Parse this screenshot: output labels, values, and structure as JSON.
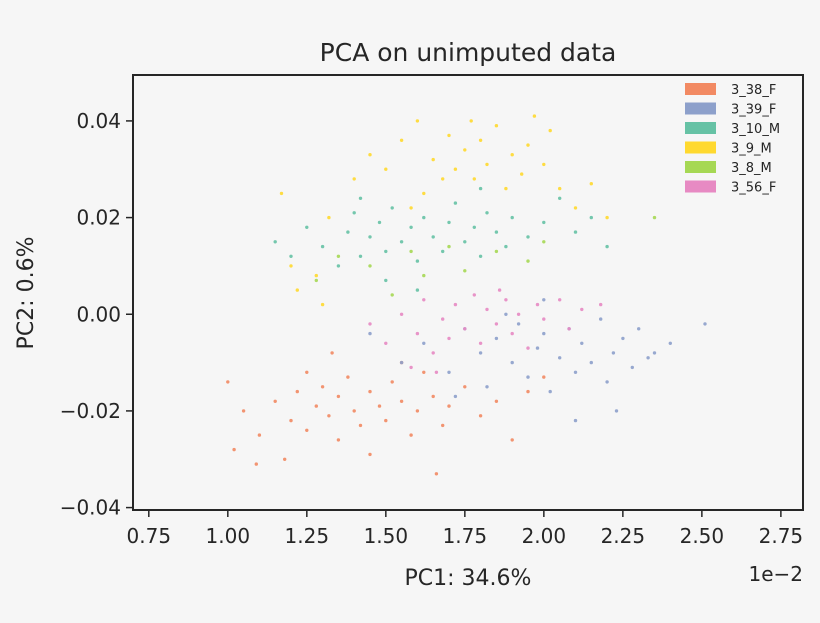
{
  "chart_data": {
    "type": "scatter",
    "title": "PCA on unimputed data",
    "xlabel": "PC1: 34.6%",
    "ylabel": "PC2: 0.6%",
    "x_offset_text": "1e−2",
    "xlim": [
      0.7,
      2.82
    ],
    "ylim": [
      -0.0405,
      0.0495
    ],
    "x_ticks": [
      0.75,
      1.0,
      1.25,
      1.5,
      1.75,
      2.0,
      2.25,
      2.5,
      2.75
    ],
    "x_tick_labels": [
      "0.75",
      "1.00",
      "1.25",
      "1.50",
      "1.75",
      "2.00",
      "2.25",
      "2.50",
      "2.75"
    ],
    "y_ticks": [
      0.04,
      0.02,
      0.0,
      -0.02,
      -0.04
    ],
    "y_tick_labels": [
      "0.04",
      "0.02",
      "0.00",
      "−0.02",
      "−0.04"
    ],
    "grid": false,
    "legend_position": "top-right",
    "series": [
      {
        "name": "3_38_F",
        "color": "#f28a63",
        "points": [
          [
            1.0,
            -0.014
          ],
          [
            1.05,
            -0.02
          ],
          [
            1.1,
            -0.025
          ],
          [
            1.15,
            -0.018
          ],
          [
            1.2,
            -0.022
          ],
          [
            1.22,
            -0.016
          ],
          [
            1.25,
            -0.012
          ],
          [
            1.25,
            -0.024
          ],
          [
            1.28,
            -0.019
          ],
          [
            1.3,
            -0.015
          ],
          [
            1.32,
            -0.021
          ],
          [
            1.35,
            -0.017
          ],
          [
            1.35,
            -0.026
          ],
          [
            1.38,
            -0.013
          ],
          [
            1.4,
            -0.02
          ],
          [
            1.42,
            -0.023
          ],
          [
            1.45,
            -0.016
          ],
          [
            1.48,
            -0.019
          ],
          [
            1.5,
            -0.022
          ],
          [
            1.52,
            -0.014
          ],
          [
            1.55,
            -0.018
          ],
          [
            1.58,
            -0.025
          ],
          [
            1.6,
            -0.02
          ],
          [
            1.62,
            -0.012
          ],
          [
            1.65,
            -0.017
          ],
          [
            1.68,
            -0.023
          ],
          [
            1.7,
            -0.019
          ],
          [
            1.75,
            -0.015
          ],
          [
            1.8,
            -0.021
          ],
          [
            1.85,
            -0.018
          ],
          [
            1.9,
            -0.026
          ],
          [
            1.95,
            -0.016
          ],
          [
            2.0,
            -0.013
          ],
          [
            1.18,
            -0.03
          ],
          [
            1.45,
            -0.029
          ],
          [
            1.66,
            -0.033
          ],
          [
            1.09,
            -0.031
          ],
          [
            1.02,
            -0.028
          ],
          [
            1.33,
            -0.008
          ],
          [
            1.55,
            -0.01
          ]
        ]
      },
      {
        "name": "3_39_F",
        "color": "#8da0cb",
        "points": [
          [
            1.45,
            -0.004
          ],
          [
            1.55,
            -0.01
          ],
          [
            1.62,
            -0.006
          ],
          [
            1.7,
            -0.012
          ],
          [
            1.75,
            -0.003
          ],
          [
            1.8,
            -0.008
          ],
          [
            1.82,
            -0.015
          ],
          [
            1.85,
            -0.005
          ],
          [
            1.9,
            -0.01
          ],
          [
            1.92,
            -0.002
          ],
          [
            1.95,
            -0.013
          ],
          [
            1.98,
            -0.007
          ],
          [
            2.0,
            -0.004
          ],
          [
            2.02,
            -0.016
          ],
          [
            2.05,
            -0.009
          ],
          [
            2.08,
            -0.003
          ],
          [
            2.1,
            -0.012
          ],
          [
            2.12,
            -0.006
          ],
          [
            2.15,
            -0.01
          ],
          [
            2.18,
            -0.001
          ],
          [
            2.2,
            -0.014
          ],
          [
            2.22,
            -0.008
          ],
          [
            2.25,
            -0.005
          ],
          [
            2.28,
            -0.011
          ],
          [
            2.3,
            -0.003
          ],
          [
            2.33,
            -0.009
          ],
          [
            2.35,
            -0.008
          ],
          [
            2.4,
            -0.006
          ],
          [
            2.51,
            -0.002
          ],
          [
            2.23,
            -0.02
          ],
          [
            2.1,
            -0.022
          ],
          [
            1.88,
            0.0
          ],
          [
            2.0,
            0.003
          ],
          [
            1.72,
            -0.017
          ]
        ]
      },
      {
        "name": "3_10_M",
        "color": "#66c2a5",
        "points": [
          [
            1.15,
            0.015
          ],
          [
            1.2,
            0.012
          ],
          [
            1.25,
            0.018
          ],
          [
            1.3,
            0.014
          ],
          [
            1.35,
            0.01
          ],
          [
            1.38,
            0.017
          ],
          [
            1.4,
            0.021
          ],
          [
            1.42,
            0.012
          ],
          [
            1.45,
            0.016
          ],
          [
            1.48,
            0.019
          ],
          [
            1.5,
            0.013
          ],
          [
            1.52,
            0.022
          ],
          [
            1.55,
            0.015
          ],
          [
            1.58,
            0.018
          ],
          [
            1.6,
            0.011
          ],
          [
            1.62,
            0.02
          ],
          [
            1.65,
            0.016
          ],
          [
            1.68,
            0.013
          ],
          [
            1.7,
            0.019
          ],
          [
            1.72,
            0.023
          ],
          [
            1.75,
            0.015
          ],
          [
            1.78,
            0.018
          ],
          [
            1.8,
            0.012
          ],
          [
            1.82,
            0.021
          ],
          [
            1.85,
            0.017
          ],
          [
            1.88,
            0.014
          ],
          [
            1.9,
            0.02
          ],
          [
            1.95,
            0.016
          ],
          [
            2.0,
            0.019
          ],
          [
            2.05,
            0.024
          ],
          [
            2.1,
            0.017
          ],
          [
            2.15,
            0.02
          ],
          [
            2.2,
            0.014
          ],
          [
            1.5,
            0.007
          ],
          [
            1.6,
            0.005
          ],
          [
            1.42,
            0.024
          ],
          [
            1.8,
            0.026
          ]
        ]
      },
      {
        "name": "3_9_M",
        "color": "#ffd92f",
        "points": [
          [
            1.17,
            0.025
          ],
          [
            1.2,
            0.01
          ],
          [
            1.22,
            0.005
          ],
          [
            1.28,
            0.008
          ],
          [
            1.32,
            0.02
          ],
          [
            1.4,
            0.028
          ],
          [
            1.45,
            0.033
          ],
          [
            1.5,
            0.03
          ],
          [
            1.55,
            0.036
          ],
          [
            1.6,
            0.04
          ],
          [
            1.65,
            0.032
          ],
          [
            1.68,
            0.028
          ],
          [
            1.7,
            0.037
          ],
          [
            1.72,
            0.03
          ],
          [
            1.75,
            0.034
          ],
          [
            1.78,
            0.028
          ],
          [
            1.8,
            0.036
          ],
          [
            1.82,
            0.031
          ],
          [
            1.85,
            0.039
          ],
          [
            1.88,
            0.026
          ],
          [
            1.9,
            0.033
          ],
          [
            1.93,
            0.029
          ],
          [
            1.95,
            0.035
          ],
          [
            2.0,
            0.031
          ],
          [
            2.02,
            0.038
          ],
          [
            2.05,
            0.026
          ],
          [
            2.1,
            0.022
          ],
          [
            2.15,
            0.027
          ],
          [
            2.2,
            0.02
          ],
          [
            1.58,
            0.022
          ],
          [
            1.62,
            0.025
          ],
          [
            1.3,
            0.002
          ],
          [
            1.77,
            0.04
          ],
          [
            1.97,
            0.041
          ]
        ]
      },
      {
        "name": "3_8_M",
        "color": "#a6d854",
        "points": [
          [
            1.28,
            0.007
          ],
          [
            1.35,
            0.012
          ],
          [
            1.45,
            0.01
          ],
          [
            1.52,
            0.004
          ],
          [
            1.58,
            0.013
          ],
          [
            1.62,
            0.008
          ],
          [
            1.7,
            0.014
          ],
          [
            1.75,
            0.009
          ],
          [
            1.85,
            0.013
          ],
          [
            1.95,
            0.011
          ],
          [
            2.0,
            0.015
          ],
          [
            2.35,
            0.02
          ]
        ]
      },
      {
        "name": "3_56_F",
        "color": "#e78ac3",
        "points": [
          [
            1.45,
            -0.002
          ],
          [
            1.5,
            -0.006
          ],
          [
            1.55,
            0.0
          ],
          [
            1.6,
            -0.004
          ],
          [
            1.62,
            0.003
          ],
          [
            1.65,
            -0.008
          ],
          [
            1.68,
            -0.001
          ],
          [
            1.7,
            -0.005
          ],
          [
            1.72,
            0.002
          ],
          [
            1.75,
            -0.003
          ],
          [
            1.78,
            0.004
          ],
          [
            1.8,
            -0.006
          ],
          [
            1.82,
            0.001
          ],
          [
            1.85,
            -0.002
          ],
          [
            1.88,
            0.003
          ],
          [
            1.9,
            -0.004
          ],
          [
            1.92,
            0.0
          ],
          [
            1.95,
            -0.007
          ],
          [
            1.98,
            0.002
          ],
          [
            2.0,
            -0.001
          ],
          [
            2.05,
            0.003
          ],
          [
            2.08,
            -0.003
          ],
          [
            2.12,
            0.001
          ],
          [
            2.18,
            0.002
          ],
          [
            1.58,
            -0.011
          ],
          [
            1.66,
            -0.012
          ],
          [
            1.86,
            0.005
          ]
        ]
      }
    ]
  }
}
